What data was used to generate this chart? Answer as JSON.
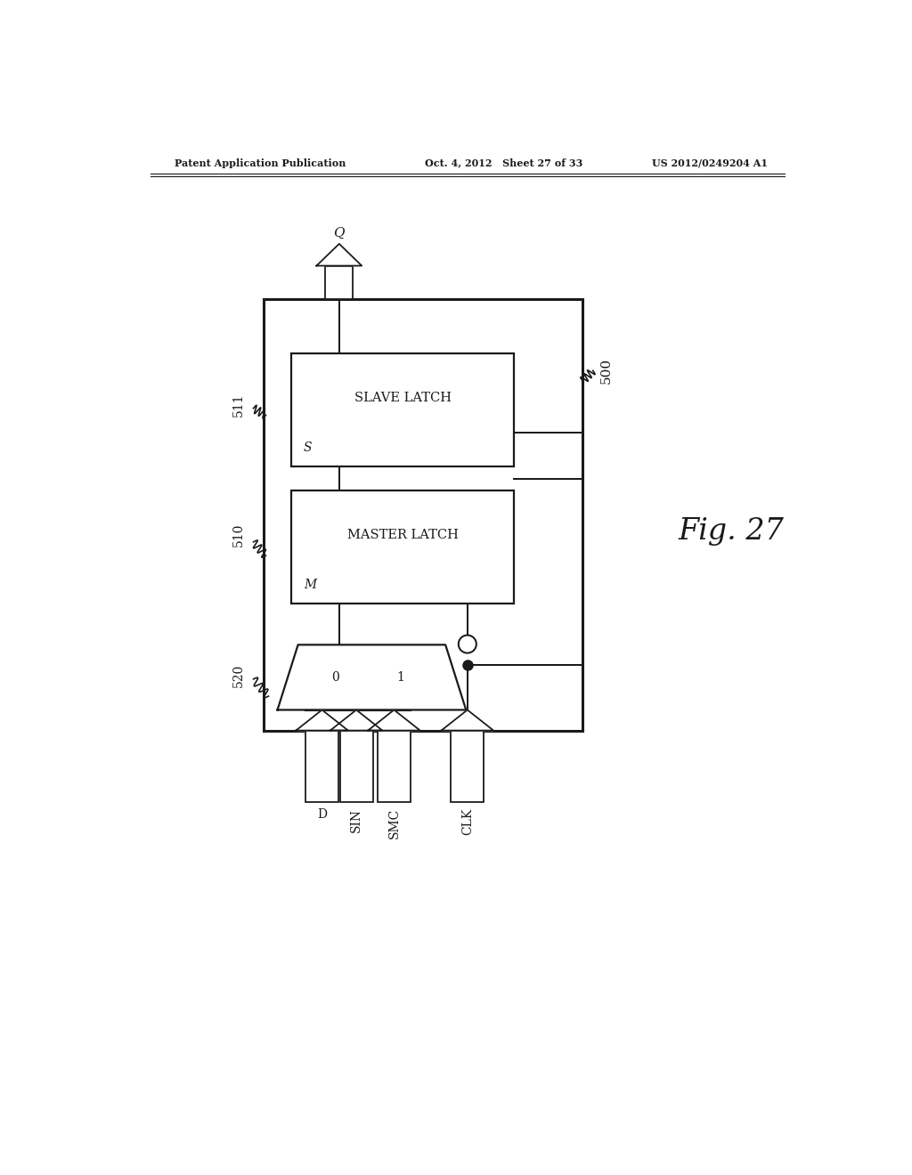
{
  "bg_color": "#ffffff",
  "line_color": "#1a1a1a",
  "header_left": "Patent Application Publication",
  "header_mid": "Oct. 4, 2012   Sheet 27 of 33",
  "header_right": "US 2012/0249204 A1",
  "fig_label": "Fig. 27",
  "outer_box_label": "500",
  "slave_label": "511",
  "slave_text1": "SLAVE LATCH",
  "slave_text2": "S",
  "master_label": "510",
  "master_text1": "MASTER LATCH",
  "master_text2": "M",
  "mux_label": "520",
  "mux_text1": "0",
  "mux_text2": "1",
  "output_label": "Q",
  "inputs": [
    "D",
    "SIN",
    "SMC",
    "CLK"
  ],
  "page_width": 10.24,
  "page_height": 13.2
}
